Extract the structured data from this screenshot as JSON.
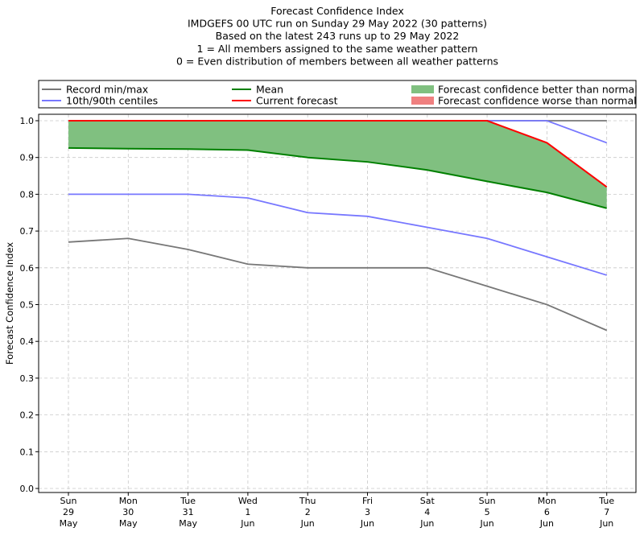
{
  "chart_data": {
    "type": "line",
    "title_lines": [
      "Forecast Confidence Index",
      "IMDGEFS 00 UTC run on Sunday 29 May 2022 (30 patterns)",
      "Based on the latest 243 runs up to 29 May 2022",
      "1 = All members assigned to the same weather pattern",
      "0 = Even distribution of members between all weather patterns"
    ],
    "ylabel": "Forecast Confidence Index",
    "ylim": [
      0,
      1
    ],
    "yticks": [
      "0.0",
      "0.1",
      "0.2",
      "0.3",
      "0.4",
      "0.5",
      "0.6",
      "0.7",
      "0.8",
      "0.9",
      "1.0"
    ],
    "grid": true,
    "legend_position": "top",
    "categories": [
      [
        "Sun",
        "29",
        "May"
      ],
      [
        "Mon",
        "30",
        "May"
      ],
      [
        "Tue",
        "31",
        "May"
      ],
      [
        "Wed",
        "1",
        "Jun"
      ],
      [
        "Thu",
        "2",
        "Jun"
      ],
      [
        "Fri",
        "3",
        "Jun"
      ],
      [
        "Sat",
        "4",
        "Jun"
      ],
      [
        "Sun",
        "5",
        "Jun"
      ],
      [
        "Mon",
        "6",
        "Jun"
      ],
      [
        "Tue",
        "7",
        "Jun"
      ]
    ],
    "series": [
      {
        "name": "Record min/max",
        "key": "record_min",
        "color": "#777777",
        "values": [
          0.67,
          0.68,
          0.65,
          0.61,
          0.6,
          0.6,
          0.6,
          0.55,
          0.5,
          0.43
        ]
      },
      {
        "key": "record_max",
        "color": "#777777",
        "values": [
          1.0,
          1.0,
          1.0,
          1.0,
          1.0,
          1.0,
          1.0,
          1.0,
          1.0,
          1.0
        ]
      },
      {
        "name": "10th/90th centiles",
        "key": "p10",
        "color": "#7777ff",
        "values": [
          0.8,
          0.8,
          0.8,
          0.79,
          0.75,
          0.74,
          0.71,
          0.68,
          0.63,
          0.58
        ]
      },
      {
        "key": "p90",
        "color": "#7777ff",
        "values": [
          1.0,
          1.0,
          1.0,
          1.0,
          1.0,
          1.0,
          1.0,
          1.0,
          1.0,
          0.94
        ]
      },
      {
        "name": "Mean",
        "key": "mean",
        "color": "#008000",
        "values": [
          0.926,
          0.924,
          0.923,
          0.92,
          0.9,
          0.888,
          0.866,
          0.835,
          0.805,
          0.762
        ]
      },
      {
        "name": "Current forecast",
        "key": "current",
        "color": "#ff0000",
        "values": [
          1.0,
          1.0,
          1.0,
          1.0,
          1.0,
          1.0,
          1.0,
          1.0,
          0.94,
          0.82
        ]
      }
    ],
    "fills": [
      {
        "name": "Forecast confidence better than normal",
        "color": "#80c080"
      },
      {
        "name": "Forecast confidence worse than normal",
        "color": "#f08080"
      }
    ]
  }
}
